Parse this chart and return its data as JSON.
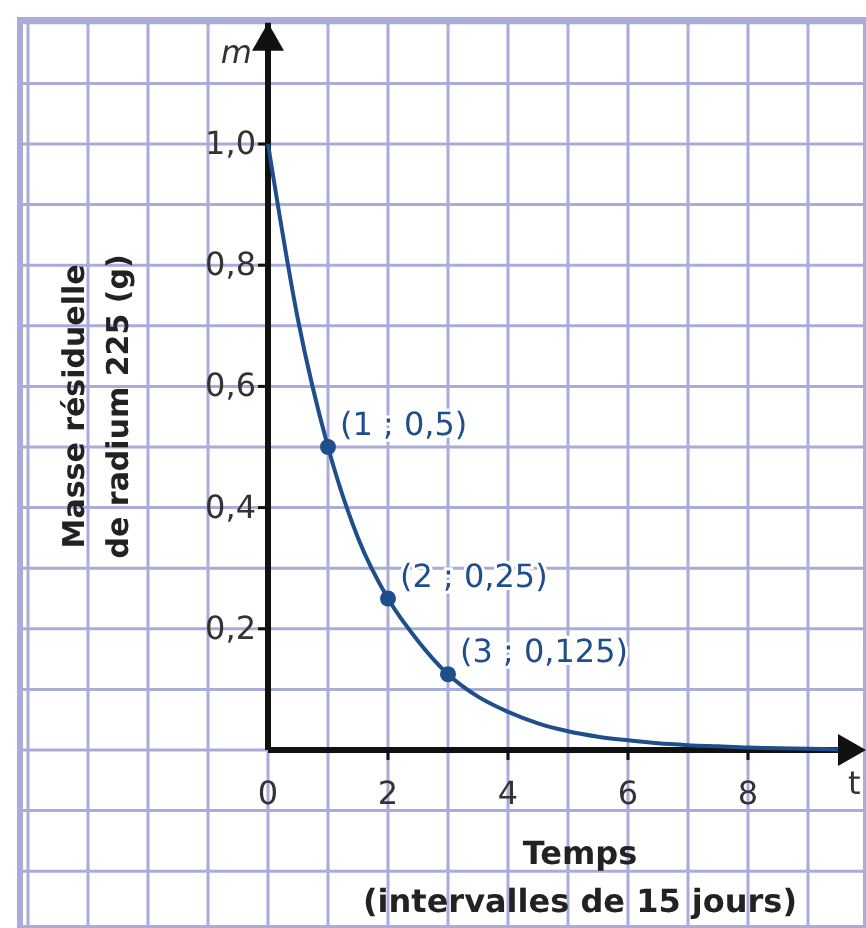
{
  "chart_data": {
    "type": "line",
    "xlabel": "Temps\n(intervalles de 15 jours)",
    "ylabel": "Masse résiduelle\nde radium 225 (g)",
    "x": [
      0,
      0.5,
      1,
      1.5,
      2,
      2.5,
      3,
      3.5,
      4,
      4.5,
      5,
      5.5,
      6,
      6.5,
      7,
      7.5,
      8,
      8.5,
      9,
      9.5
    ],
    "series": [
      {
        "color": "#1f4e8c",
        "values": [
          1,
          0.71,
          0.5,
          0.35,
          0.25,
          0.18,
          0.125,
          0.088,
          0.063,
          0.044,
          0.031,
          0.022,
          0.016,
          0.011,
          0.008,
          0.006,
          0.004,
          0.003,
          0.002,
          0.001
        ]
      },
      {
        "type": "scatter",
        "marker": "circle",
        "color": "#1f4e8c",
        "x": [
          1,
          2,
          3
        ],
        "values": [
          0.5,
          0.25,
          0.125
        ]
      }
    ],
    "xlim": [
      0,
      9.6
    ],
    "ylim": [
      0,
      1.2
    ],
    "xticks": [
      0,
      {
        "value": 2,
        "label": "2"
      },
      4,
      6,
      8
    ],
    "yticks": [
      {
        "value": 0.2,
        "label": "0,2"
      },
      {
        "value": 0.4,
        "label": "0,4"
      },
      {
        "value": 0.6,
        "label": "0,6"
      },
      {
        "value": 0.8,
        "label": "0,8"
      },
      {
        "value": 1.0,
        "label": "1,0"
      }
    ],
    "grid": true,
    "annotations": [
      {
        "text": "(1 ; 0,5)",
        "x": 1,
        "y": 0.5
      },
      {
        "text": "(2 ; 0,25)",
        "x": 2,
        "y": 0.25
      },
      {
        "text": "(3 ; 0,125)",
        "x": 3,
        "y": 0.125
      },
      "m",
      "t"
    ]
  }
}
